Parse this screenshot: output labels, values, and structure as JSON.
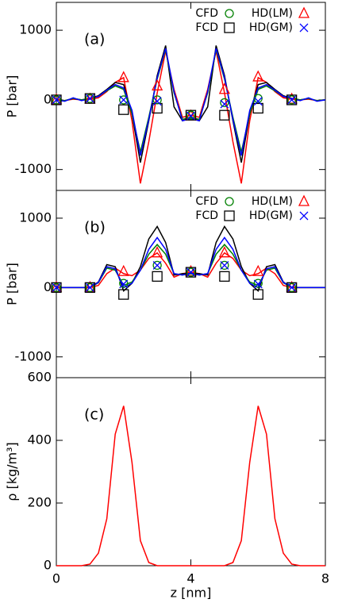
{
  "chart_data": [
    {
      "type": "line",
      "label": "(a)",
      "ylabel": "P [bar]",
      "xlim": [
        0,
        8
      ],
      "xticks": [
        0,
        4,
        8
      ],
      "xtick_labels": false,
      "ylim": [
        -1300,
        1400
      ],
      "yticks": [
        -1000,
        0,
        1000
      ],
      "legend": "upper right",
      "x": [
        0,
        0.25,
        0.5,
        0.75,
        1,
        1.25,
        1.5,
        1.75,
        2,
        2.25,
        2.5,
        2.75,
        3,
        3.25,
        3.5,
        3.75,
        4,
        4.25,
        4.5,
        4.75,
        5,
        5.25,
        5.5,
        5.75,
        6,
        6.25,
        6.5,
        6.75,
        7,
        7.25,
        7.5,
        7.75,
        8
      ],
      "marker_x": [
        0,
        1,
        2,
        3,
        4,
        5,
        6,
        7
      ],
      "series": [
        {
          "name": "HD(LM)",
          "color": "#ff0000",
          "marker": "triangle",
          "values": [
            0,
            -10,
            10,
            0,
            10,
            30,
            120,
            250,
            320,
            -300,
            -1200,
            -600,
            100,
            700,
            150,
            -250,
            -220,
            -250,
            150,
            700,
            100,
            -600,
            -1200,
            -300,
            320,
            250,
            120,
            30,
            10,
            0,
            10,
            -10,
            0
          ],
          "markers": [
            0,
            10,
            320,
            200,
            -230,
            150,
            330,
            10
          ]
        },
        {
          "name": "FCD",
          "color": "#000000",
          "marker": "square",
          "values": [
            0,
            -10,
            20,
            0,
            20,
            60,
            150,
            250,
            220,
            -200,
            -900,
            -300,
            350,
            780,
            -100,
            -300,
            -250,
            -300,
            -100,
            780,
            350,
            -300,
            -900,
            -200,
            220,
            250,
            150,
            60,
            20,
            0,
            20,
            -10,
            0
          ],
          "markers": [
            0,
            20,
            -140,
            -120,
            -220,
            -220,
            -120,
            0
          ]
        },
        {
          "name": "CFD",
          "color": "#008000",
          "marker": "circle",
          "values": [
            0,
            -10,
            20,
            0,
            20,
            50,
            130,
            200,
            150,
            -200,
            -750,
            -250,
            300,
            720,
            100,
            -280,
            -250,
            -280,
            100,
            720,
            300,
            -250,
            -750,
            -200,
            150,
            200,
            130,
            50,
            20,
            0,
            20,
            -10,
            0
          ],
          "markers": [
            0,
            20,
            0,
            0,
            -220,
            -40,
            20,
            0
          ]
        },
        {
          "name": "HD(GM)",
          "color": "#0000ff",
          "marker": "x",
          "values": [
            0,
            -20,
            30,
            -10,
            20,
            50,
            140,
            220,
            170,
            -150,
            -800,
            -280,
            320,
            740,
            120,
            -300,
            -270,
            -300,
            120,
            740,
            320,
            -280,
            -800,
            -150,
            170,
            220,
            140,
            50,
            20,
            -10,
            30,
            -20,
            0
          ],
          "markers": [
            0,
            20,
            0,
            -20,
            -230,
            -60,
            -20,
            0
          ]
        }
      ]
    },
    {
      "type": "line",
      "label": "(b)",
      "ylabel": "P [bar]",
      "xlim": [
        0,
        8
      ],
      "xticks": [
        0,
        4,
        8
      ],
      "xtick_labels": false,
      "ylim": [
        -1300,
        1400
      ],
      "yticks": [
        -1000,
        0,
        1000
      ],
      "legend": "upper right",
      "x": [
        0,
        0.25,
        0.5,
        0.75,
        1,
        1.25,
        1.5,
        1.75,
        2,
        2.25,
        2.5,
        2.75,
        3,
        3.25,
        3.5,
        3.75,
        4,
        4.25,
        4.5,
        4.75,
        5,
        5.25,
        5.5,
        5.75,
        6,
        6.25,
        6.5,
        6.75,
        7,
        7.25,
        7.5,
        7.75,
        8
      ],
      "marker_x": [
        0,
        1,
        2,
        3,
        4,
        5,
        6,
        7
      ],
      "series": [
        {
          "name": "HD(LM)",
          "color": "#ff0000",
          "marker": "triangle",
          "values": [
            0,
            0,
            0,
            0,
            0,
            30,
            200,
            280,
            200,
            170,
            250,
            420,
            500,
            350,
            150,
            200,
            220,
            200,
            150,
            350,
            500,
            420,
            250,
            170,
            200,
            280,
            200,
            30,
            0,
            0,
            0,
            0,
            0
          ],
          "markers": [
            0,
            0,
            230,
            500,
            230,
            500,
            230,
            0
          ]
        },
        {
          "name": "FCD",
          "color": "#000000",
          "marker": "square",
          "values": [
            0,
            0,
            0,
            0,
            0,
            80,
            330,
            300,
            -50,
            60,
            300,
            700,
            880,
            650,
            180,
            200,
            200,
            200,
            180,
            650,
            880,
            700,
            300,
            60,
            -50,
            300,
            330,
            80,
            0,
            0,
            0,
            0,
            0
          ],
          "markers": [
            0,
            0,
            -100,
            160,
            220,
            160,
            -100,
            0
          ]
        },
        {
          "name": "CFD",
          "color": "#008000",
          "marker": "circle",
          "values": [
            0,
            0,
            0,
            0,
            0,
            70,
            280,
            250,
            30,
            80,
            250,
            480,
            620,
            480,
            200,
            180,
            200,
            180,
            200,
            480,
            620,
            480,
            250,
            80,
            30,
            250,
            280,
            70,
            0,
            0,
            0,
            0,
            0
          ],
          "markers": [
            0,
            0,
            60,
            320,
            220,
            320,
            60,
            0
          ]
        },
        {
          "name": "HD(GM)",
          "color": "#0000ff",
          "marker": "x",
          "values": [
            0,
            0,
            0,
            0,
            0,
            75,
            300,
            270,
            0,
            60,
            250,
            550,
            720,
            550,
            200,
            180,
            210,
            180,
            200,
            550,
            720,
            550,
            250,
            60,
            0,
            270,
            300,
            75,
            0,
            0,
            0,
            0,
            0
          ],
          "markers": [
            0,
            0,
            50,
            320,
            220,
            320,
            50,
            0
          ]
        }
      ]
    },
    {
      "type": "line",
      "label": "(c)",
      "ylabel": "ρ [kg/m³]",
      "xlabel": "z [nm]",
      "xlim": [
        0,
        8
      ],
      "xticks": [
        0,
        4,
        8
      ],
      "xtick_labels": true,
      "ylim": [
        0,
        600
      ],
      "yticks": [
        0,
        200,
        400,
        600
      ],
      "x": [
        0,
        0.25,
        0.5,
        0.75,
        1,
        1.25,
        1.5,
        1.75,
        2,
        2.25,
        2.5,
        2.75,
        3,
        3.25,
        3.5,
        3.75,
        4,
        4.25,
        4.5,
        4.75,
        5,
        5.25,
        5.5,
        5.75,
        6,
        6.25,
        6.5,
        6.75,
        7,
        7.25,
        7.5,
        7.75,
        8
      ],
      "series": [
        {
          "color": "#ff0000",
          "values": [
            0,
            0,
            0,
            0,
            5,
            40,
            150,
            420,
            510,
            330,
            80,
            10,
            0,
            0,
            0,
            0,
            0,
            0,
            0,
            0,
            0,
            10,
            80,
            330,
            510,
            420,
            150,
            40,
            5,
            0,
            0,
            0,
            0
          ]
        }
      ]
    }
  ]
}
